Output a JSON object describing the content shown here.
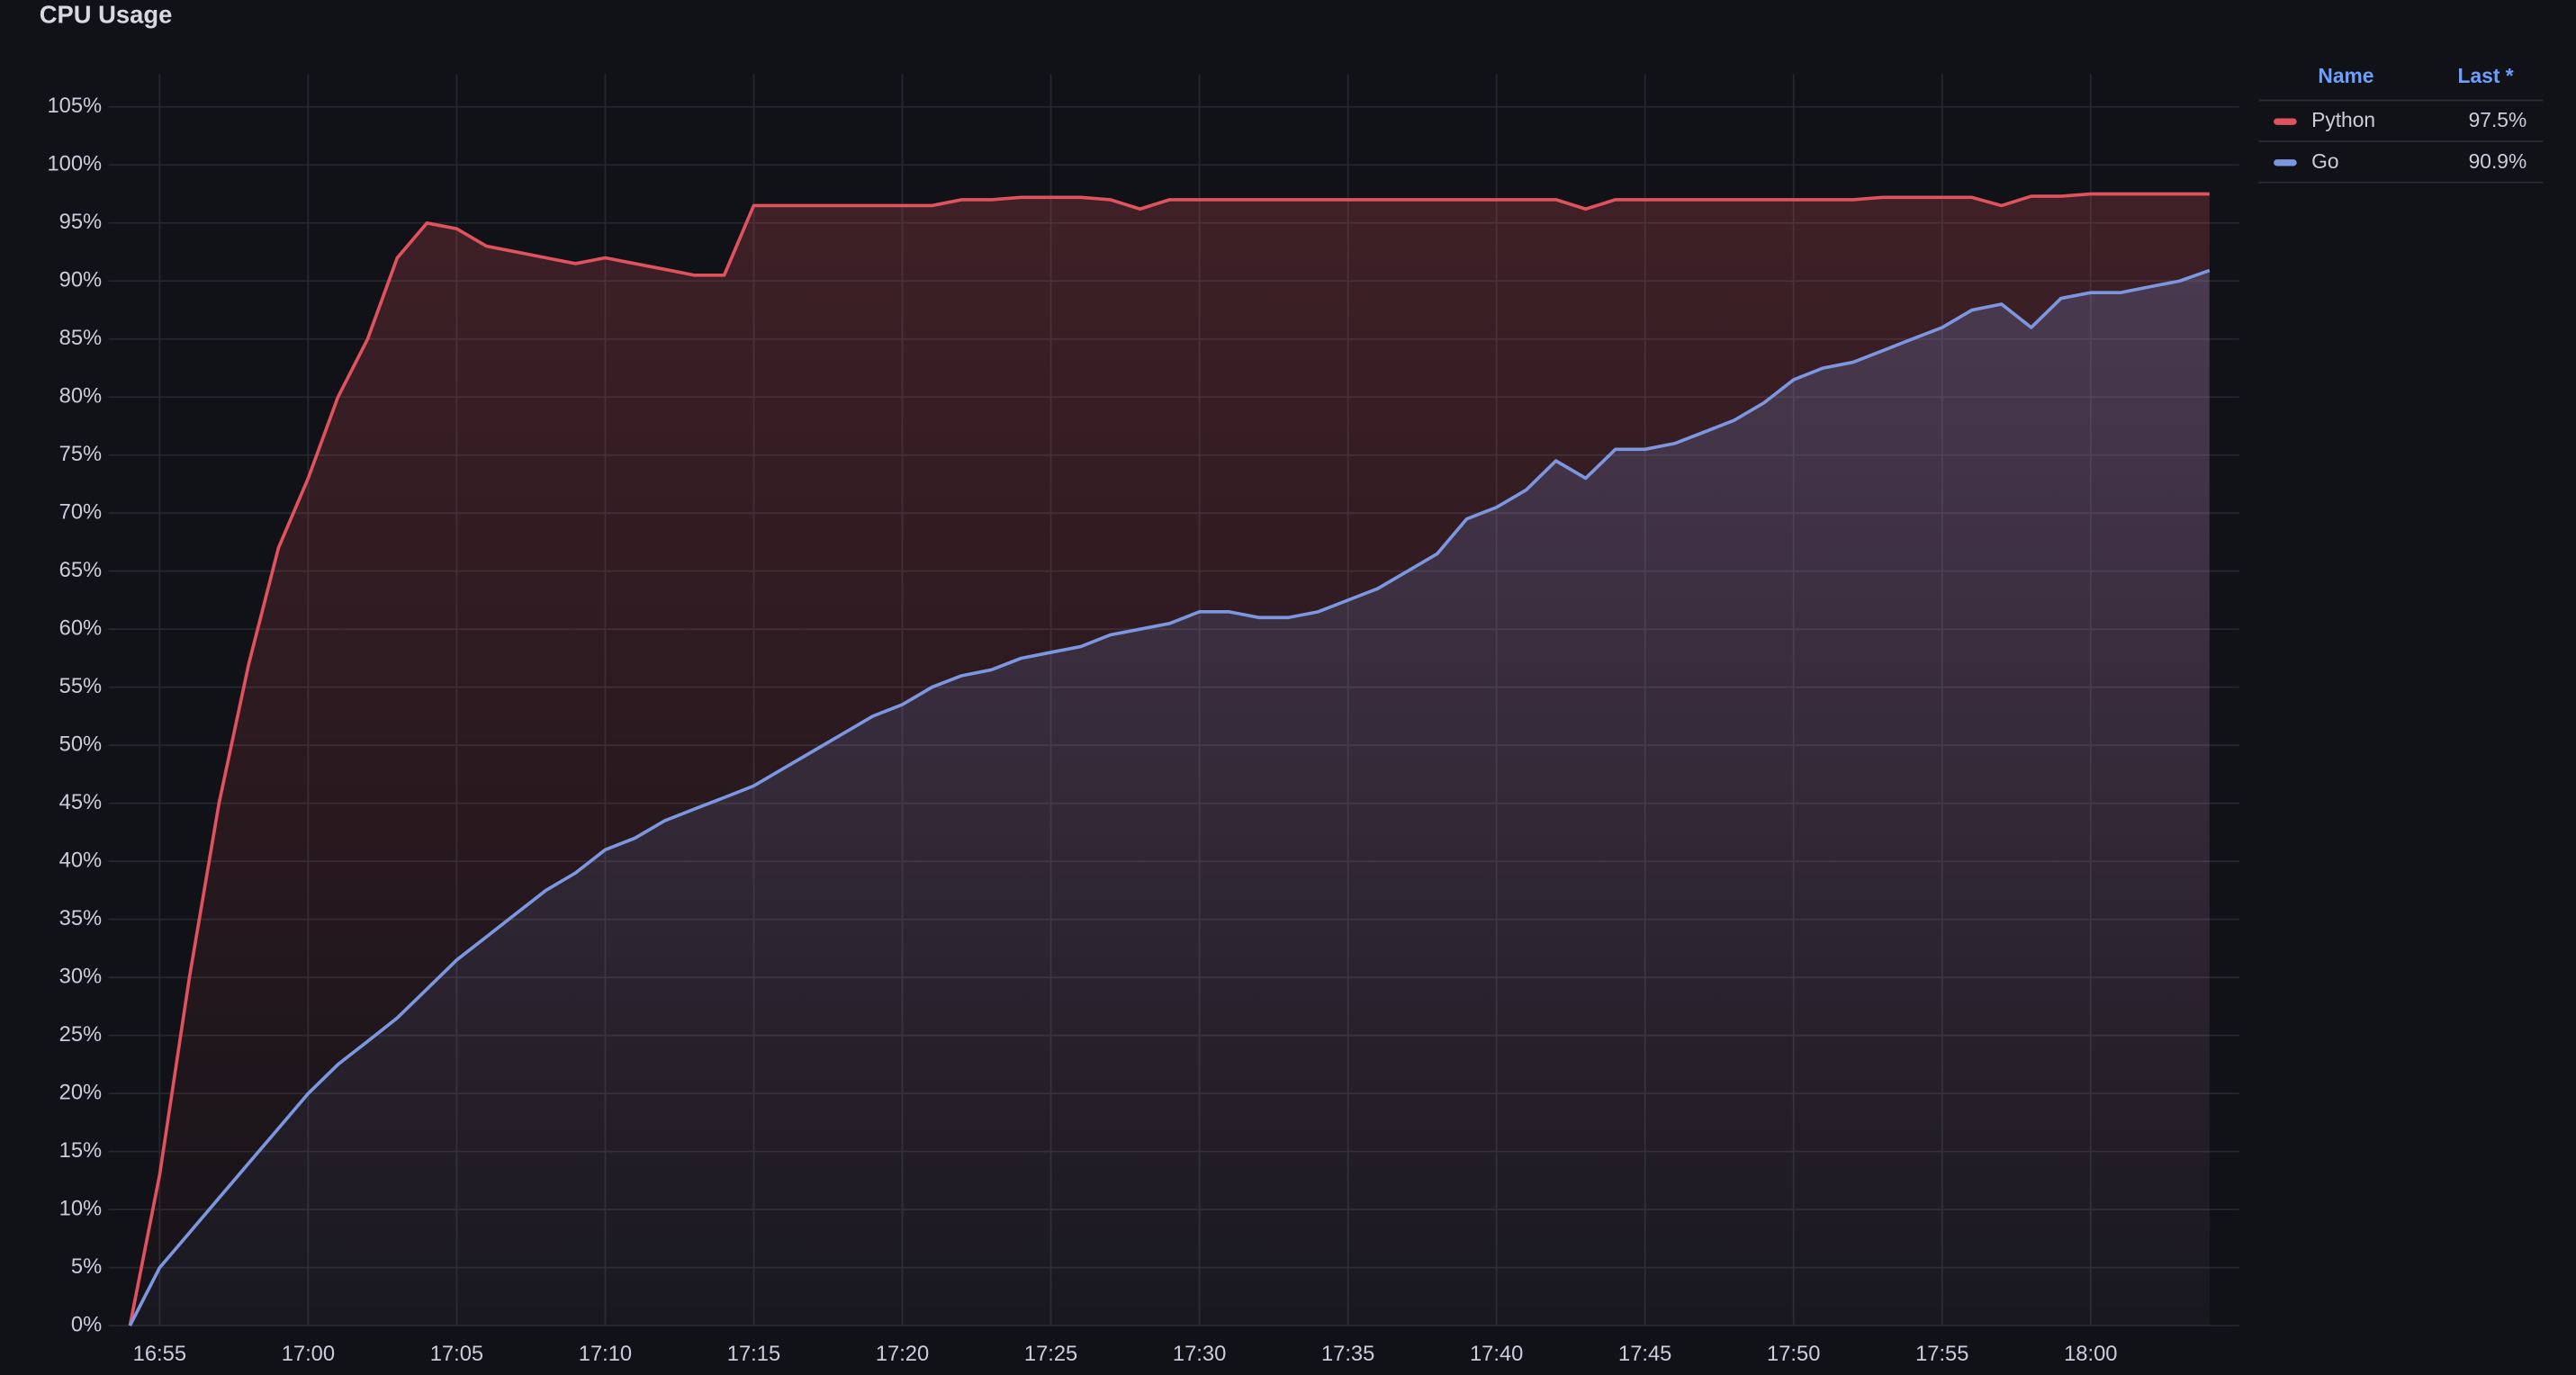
{
  "chart_data": {
    "type": "line",
    "title": "CPU Usage",
    "x": [
      "16:54",
      "16:55",
      "16:56",
      "16:57",
      "16:58",
      "16:59",
      "17:00",
      "17:01",
      "17:02",
      "17:03",
      "17:04",
      "17:05",
      "17:06",
      "17:07",
      "17:08",
      "17:09",
      "17:10",
      "17:11",
      "17:12",
      "17:13",
      "17:14",
      "17:15",
      "17:16",
      "17:17",
      "17:18",
      "17:19",
      "17:20",
      "17:21",
      "17:22",
      "17:23",
      "17:24",
      "17:25",
      "17:26",
      "17:27",
      "17:28",
      "17:29",
      "17:30",
      "17:31",
      "17:32",
      "17:33",
      "17:34",
      "17:35",
      "17:36",
      "17:37",
      "17:38",
      "17:39",
      "17:40",
      "17:41",
      "17:42",
      "17:43",
      "17:44",
      "17:45",
      "17:46",
      "17:47",
      "17:48",
      "17:49",
      "17:50",
      "17:51",
      "17:52",
      "17:53",
      "17:54",
      "17:55",
      "17:56",
      "17:57",
      "17:58",
      "17:59",
      "18:00",
      "18:01",
      "18:02",
      "18:03",
      "18:04"
    ],
    "series": [
      {
        "name": "Python",
        "color": "#e0525e",
        "last_label": "97.5%",
        "values": [
          0,
          13,
          30,
          45,
          57,
          67,
          73,
          80,
          85,
          92,
          95,
          94.5,
          93,
          92.5,
          92,
          91.5,
          92,
          91.5,
          91,
          90.5,
          90.5,
          96.5,
          96.5,
          96.5,
          96.5,
          96.5,
          96.5,
          96.5,
          97,
          97,
          97.2,
          97.2,
          97.2,
          97,
          96.2,
          97,
          97,
          97,
          97,
          97,
          97,
          97,
          97,
          97,
          97,
          97,
          97,
          97,
          97,
          96.2,
          97,
          97,
          97,
          97,
          97,
          97,
          97,
          97,
          97,
          97.2,
          97.2,
          97.2,
          97.2,
          96.5,
          97.3,
          97.3,
          97.5,
          97.5,
          97.5,
          97.5,
          97.5
        ]
      },
      {
        "name": "Go",
        "color": "#7d96e0",
        "last_label": "90.9%",
        "values": [
          0,
          5,
          8,
          11,
          14,
          17,
          20,
          22.5,
          24.5,
          26.5,
          29,
          31.5,
          33.5,
          35.5,
          37.5,
          39,
          41,
          42,
          43.5,
          44.5,
          45.5,
          46.5,
          48,
          49.5,
          51,
          52.5,
          53.5,
          55,
          56,
          56.5,
          57.5,
          58,
          58.5,
          59.5,
          60,
          60.5,
          61.5,
          61.5,
          61,
          61,
          61.5,
          62.5,
          63.5,
          65,
          66.5,
          69.5,
          70.5,
          72,
          74.5,
          73,
          75.5,
          75.5,
          76,
          77,
          78,
          79.5,
          81.5,
          82.5,
          83,
          84,
          85,
          86,
          87.5,
          88,
          86,
          88.5,
          89,
          89,
          89.5,
          90,
          90.9
        ]
      }
    ],
    "xlim": [
      "16:53",
      "18:05"
    ],
    "xticks": [
      "16:55",
      "17:00",
      "17:05",
      "17:10",
      "17:15",
      "17:20",
      "17:25",
      "17:30",
      "17:35",
      "17:40",
      "17:45",
      "17:50",
      "17:55",
      "18:00"
    ],
    "ylim": [
      0,
      105
    ],
    "yticks": [
      {
        "value": 0,
        "label": "0%"
      },
      {
        "value": 5,
        "label": "5%"
      },
      {
        "value": 10,
        "label": "10%"
      },
      {
        "value": 15,
        "label": "15%"
      },
      {
        "value": 20,
        "label": "20%"
      },
      {
        "value": 25,
        "label": "25%"
      },
      {
        "value": 30,
        "label": "30%"
      },
      {
        "value": 35,
        "label": "35%"
      },
      {
        "value": 40,
        "label": "40%"
      },
      {
        "value": 45,
        "label": "45%"
      },
      {
        "value": 50,
        "label": "50%"
      },
      {
        "value": 55,
        "label": "55%"
      },
      {
        "value": 60,
        "label": "60%"
      },
      {
        "value": 65,
        "label": "65%"
      },
      {
        "value": 70,
        "label": "70%"
      },
      {
        "value": 75,
        "label": "75%"
      },
      {
        "value": 80,
        "label": "80%"
      },
      {
        "value": 85,
        "label": "85%"
      },
      {
        "value": 90,
        "label": "90%"
      },
      {
        "value": 95,
        "label": "95%"
      },
      {
        "value": 100,
        "label": "100%"
      },
      {
        "value": 105,
        "label": "105%"
      }
    ],
    "grid": true,
    "legend": {
      "position": "right",
      "columns": [
        "Name",
        "Last *"
      ]
    }
  }
}
